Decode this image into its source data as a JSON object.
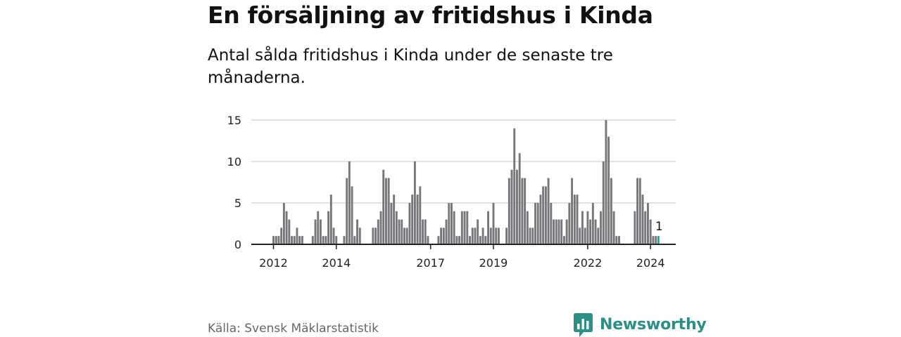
{
  "header": {
    "title": "En försäljning av fritidshus i Kinda",
    "subtitle": "Antal sålda fritidshus i Kinda under de senaste tre månaderna."
  },
  "footer": {
    "source": "Källa: Svensk Mäklarstatistik",
    "brand": "Newsworthy"
  },
  "colors": {
    "bar": "#77777b",
    "highlight": "#3a9a91",
    "grid": "#d9d9d9",
    "axis": "#222222",
    "brand": "#2a8f87"
  },
  "chart_data": {
    "type": "bar",
    "title": "En försäljning av fritidshus i Kinda",
    "subtitle": "Antal sålda fritidshus i Kinda under de senaste tre månaderna.",
    "xlabel": "",
    "ylabel": "",
    "start": "2012-01",
    "frequency": "monthly",
    "ylim": [
      0,
      15
    ],
    "yticks": [
      0,
      5,
      10,
      15
    ],
    "xticks": [
      {
        "label": "2012",
        "index": 0
      },
      {
        "label": "2014",
        "index": 24
      },
      {
        "label": "2017",
        "index": 60
      },
      {
        "label": "2019",
        "index": 84
      },
      {
        "label": "2022",
        "index": 120
      },
      {
        "label": "2024",
        "index": 144
      }
    ],
    "values": [
      1,
      1,
      1,
      2,
      5,
      4,
      3,
      1,
      1,
      2,
      1,
      1,
      0,
      0,
      0,
      1,
      3,
      4,
      3,
      1,
      1,
      4,
      6,
      2,
      1,
      0,
      0,
      1,
      8,
      10,
      7,
      1,
      3,
      2,
      0,
      0,
      0,
      0,
      2,
      2,
      3,
      4,
      9,
      8,
      8,
      5,
      6,
      4,
      3,
      3,
      2,
      2,
      5,
      6,
      10,
      6,
      7,
      3,
      3,
      1,
      0,
      0,
      0,
      1,
      2,
      2,
      3,
      5,
      5,
      4,
      1,
      1,
      4,
      4,
      4,
      1,
      2,
      2,
      3,
      1,
      2,
      1,
      4,
      2,
      5,
      2,
      2,
      0,
      0,
      2,
      8,
      9,
      14,
      9,
      11,
      8,
      8,
      4,
      2,
      2,
      5,
      5,
      6,
      7,
      7,
      8,
      5,
      3,
      3,
      3,
      3,
      1,
      3,
      5,
      8,
      6,
      6,
      2,
      4,
      2,
      4,
      3,
      5,
      3,
      2,
      4,
      10,
      15,
      13,
      8,
      4,
      1,
      1,
      0,
      0,
      0,
      0,
      0,
      4,
      8,
      8,
      6,
      4,
      5,
      3,
      1,
      1,
      1
    ],
    "highlight_index": 147,
    "highlight_label": "1"
  }
}
